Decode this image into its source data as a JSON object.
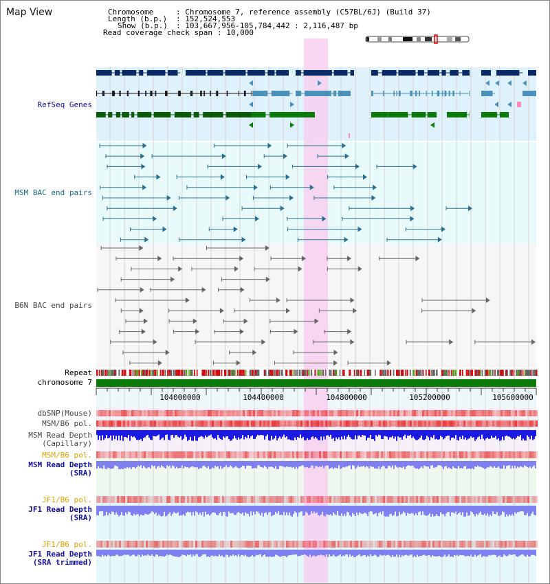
{
  "view_title": "Map View",
  "info": {
    "chromosome_label": "Chromosome",
    "chromosome_value": ": Chromosome 7, reference assembly (C57BL/6J) (Build 37)",
    "length_label": "Length (b.p.)",
    "length_value": ": 152,524,553",
    "show_label": "Show (b.p.)",
    "show_value": ": 103,667,956-105,784,442 : 2,116,487 bp",
    "coverage_label": "Read coverage check span",
    "coverage_value": ": 10,000"
  },
  "tracks": {
    "refseq": "RefSeq Genes",
    "msm_bac": "MSM BAC end pairs",
    "b6n_bac": "B6N BAC end pairs",
    "repeat": "Repeat",
    "chromosome": "chromosome 7",
    "dbsnp": "dbSNP(Mouse)",
    "msm_b6_pol_1": "MSM/B6 pol.",
    "msm_read_depth_cap_1": "MSM Read Depth",
    "msm_read_depth_cap_2": "(Capillary)",
    "msm_b6_pol_2": "MSM/B6 pol.",
    "msm_read_depth_sra_1": "MSM Read Depth",
    "msm_read_depth_sra_2": "(SRA)",
    "jf1_b6_pol_1": "JF1/B6 pol.",
    "jf1_read_depth_sra_1": "JF1 Read Depth",
    "jf1_read_depth_sra_2": "(SRA)",
    "jf1_b6_pol_2": "JF1/B6 pol.",
    "jf1_read_depth_trim_1": "JF1 Read Depth",
    "jf1_read_depth_trim_2": "(SRA trimmed)"
  },
  "axis": {
    "ticks": [
      "104000000",
      "104400000",
      "104800000",
      "105200000",
      "105600000"
    ]
  },
  "colors": {
    "highlight": "#f8d0f0",
    "gene_dark": "#0a2a66",
    "gene_mid": "#4a90b8",
    "gene_green": "#0a7a0a",
    "msm_bac": "#2a7090",
    "b6n_bac": "#666666",
    "chrom_bar": "#0a7a0a",
    "depth_cap": "#1a1ae0",
    "depth_sra": "#8080f0",
    "pol_red": "#e83030"
  }
}
